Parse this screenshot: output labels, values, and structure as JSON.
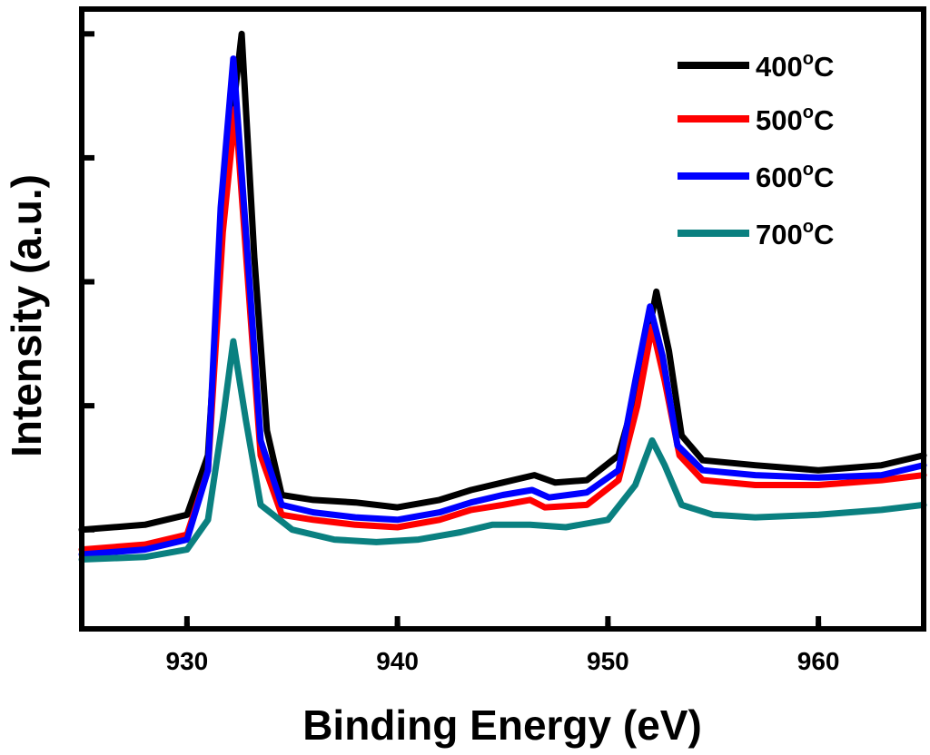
{
  "chart_data": {
    "type": "line",
    "title": "",
    "xlabel": "Binding Energy (eV)",
    "ylabel": "Intensity (a.u.)",
    "xlim": [
      925,
      965
    ],
    "ylim": [
      -0.2,
      1.05
    ],
    "x_ticks": [
      930,
      940,
      950,
      960
    ],
    "x_tick_labels": [
      "930",
      "940",
      "950",
      "960"
    ],
    "y_ticks": [
      0.0,
      0.25,
      0.5,
      0.75,
      1.0
    ],
    "grid": false,
    "legend_position": "top-right",
    "series": [
      {
        "name": "400°C",
        "label_main": "400",
        "label_sup": "o",
        "label_unit": "C",
        "color": "#000000",
        "points": [
          [
            925,
            0.0
          ],
          [
            928,
            0.01
          ],
          [
            930,
            0.03
          ],
          [
            931,
            0.15
          ],
          [
            931.8,
            0.7
          ],
          [
            932.6,
            1.0
          ],
          [
            933.2,
            0.55
          ],
          [
            933.8,
            0.2
          ],
          [
            934.5,
            0.07
          ],
          [
            936,
            0.06
          ],
          [
            938,
            0.055
          ],
          [
            940,
            0.045
          ],
          [
            942,
            0.06
          ],
          [
            943.5,
            0.08
          ],
          [
            945,
            0.095
          ],
          [
            946.5,
            0.11
          ],
          [
            947.5,
            0.095
          ],
          [
            949,
            0.1
          ],
          [
            950.5,
            0.15
          ],
          [
            951.5,
            0.3
          ],
          [
            952.3,
            0.48
          ],
          [
            952.9,
            0.36
          ],
          [
            953.5,
            0.19
          ],
          [
            954.5,
            0.14
          ],
          [
            957,
            0.13
          ],
          [
            960,
            0.12
          ],
          [
            963,
            0.13
          ],
          [
            965,
            0.15
          ]
        ]
      },
      {
        "name": "500°C",
        "label_main": "500",
        "label_sup": "o",
        "label_unit": "C",
        "color": "#ff0000",
        "points": [
          [
            925,
            -0.04
          ],
          [
            928,
            -0.03
          ],
          [
            930,
            -0.01
          ],
          [
            931,
            0.12
          ],
          [
            931.7,
            0.6
          ],
          [
            932.3,
            0.85
          ],
          [
            932.9,
            0.5
          ],
          [
            933.5,
            0.15
          ],
          [
            934.5,
            0.03
          ],
          [
            936,
            0.02
          ],
          [
            938,
            0.01
          ],
          [
            940,
            0.005
          ],
          [
            942,
            0.02
          ],
          [
            943.5,
            0.04
          ],
          [
            945,
            0.05
          ],
          [
            946.3,
            0.06
          ],
          [
            947,
            0.045
          ],
          [
            949,
            0.05
          ],
          [
            950.5,
            0.1
          ],
          [
            951.4,
            0.25
          ],
          [
            952.1,
            0.41
          ],
          [
            952.7,
            0.3
          ],
          [
            953.4,
            0.15
          ],
          [
            954.5,
            0.1
          ],
          [
            957,
            0.09
          ],
          [
            960,
            0.09
          ],
          [
            963,
            0.1
          ],
          [
            965,
            0.11
          ]
        ]
      },
      {
        "name": "600°C",
        "label_main": "600",
        "label_sup": "o",
        "label_unit": "C",
        "color": "#0000ff",
        "points": [
          [
            925,
            -0.05
          ],
          [
            928,
            -0.04
          ],
          [
            930,
            -0.02
          ],
          [
            931,
            0.12
          ],
          [
            931.6,
            0.65
          ],
          [
            932.2,
            0.95
          ],
          [
            932.8,
            0.6
          ],
          [
            933.5,
            0.18
          ],
          [
            934.5,
            0.05
          ],
          [
            936,
            0.035
          ],
          [
            938,
            0.025
          ],
          [
            940,
            0.02
          ],
          [
            942,
            0.035
          ],
          [
            943.5,
            0.055
          ],
          [
            945,
            0.07
          ],
          [
            946.4,
            0.08
          ],
          [
            947.2,
            0.065
          ],
          [
            949,
            0.075
          ],
          [
            950.5,
            0.12
          ],
          [
            951.3,
            0.3
          ],
          [
            952,
            0.45
          ],
          [
            952.6,
            0.35
          ],
          [
            953.3,
            0.17
          ],
          [
            954.5,
            0.12
          ],
          [
            957,
            0.11
          ],
          [
            960,
            0.105
          ],
          [
            963,
            0.11
          ],
          [
            965,
            0.13
          ]
        ]
      },
      {
        "name": "700°C",
        "label_main": "700",
        "label_sup": "o",
        "label_unit": "C",
        "color": "#0a8080",
        "points": [
          [
            925,
            -0.06
          ],
          [
            928,
            -0.055
          ],
          [
            930,
            -0.04
          ],
          [
            931,
            0.02
          ],
          [
            931.7,
            0.22
          ],
          [
            932.2,
            0.38
          ],
          [
            932.8,
            0.22
          ],
          [
            933.5,
            0.05
          ],
          [
            935,
            0.0
          ],
          [
            937,
            -0.02
          ],
          [
            939,
            -0.025
          ],
          [
            941,
            -0.02
          ],
          [
            943,
            -0.005
          ],
          [
            944.5,
            0.01
          ],
          [
            946.3,
            0.01
          ],
          [
            948,
            0.005
          ],
          [
            950,
            0.02
          ],
          [
            951.3,
            0.09
          ],
          [
            952.1,
            0.18
          ],
          [
            952.7,
            0.13
          ],
          [
            953.5,
            0.05
          ],
          [
            955,
            0.03
          ],
          [
            957,
            0.025
          ],
          [
            960,
            0.03
          ],
          [
            963,
            0.04
          ],
          [
            965,
            0.05
          ]
        ]
      }
    ]
  }
}
